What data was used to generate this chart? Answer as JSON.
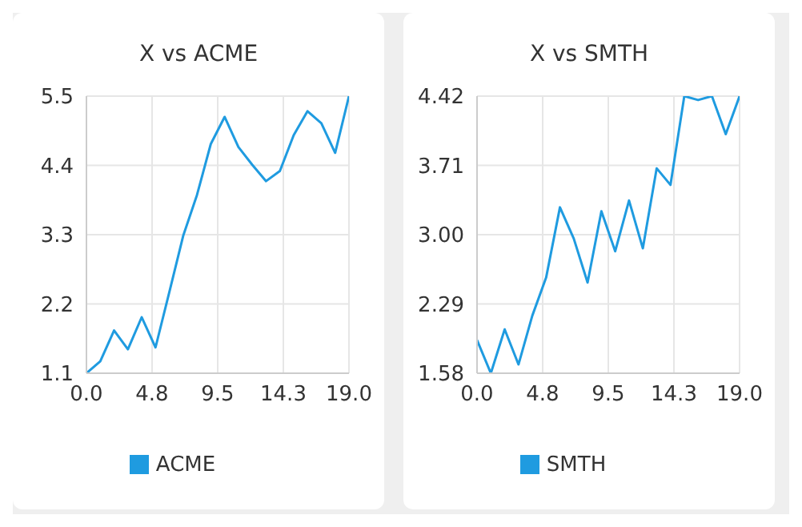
{
  "chart_data": [
    {
      "type": "line",
      "title": "X vs ACME",
      "x": [
        0,
        1,
        2,
        3,
        4,
        5,
        6,
        7,
        8,
        9,
        10,
        11,
        12,
        13,
        14,
        15,
        16,
        17,
        18,
        19
      ],
      "series": [
        {
          "name": "ACME",
          "color": "#1f9be0",
          "values": [
            1.1,
            1.29,
            1.78,
            1.48,
            1.99,
            1.51,
            2.39,
            3.28,
            3.93,
            4.74,
            5.17,
            4.69,
            4.41,
            4.15,
            4.31,
            4.88,
            5.26,
            5.07,
            4.6,
            5.5
          ]
        }
      ],
      "xlim": [
        0,
        19
      ],
      "xticks": [
        {
          "value": 0,
          "label": "0.0"
        },
        {
          "value": 4.75,
          "label": "4.8"
        },
        {
          "value": 9.5,
          "label": "9.5"
        },
        {
          "value": 14.25,
          "label": "14.3"
        },
        {
          "value": 19,
          "label": "19.0"
        }
      ],
      "ylim": [
        1.1,
        5.5
      ],
      "yticks": [
        1.1,
        2.2,
        3.3,
        4.4,
        5.5
      ],
      "grid": true,
      "legend": "bottom",
      "marker": "none"
    },
    {
      "type": "line",
      "title": "X vs SMTH",
      "x": [
        0,
        1,
        2,
        3,
        4,
        5,
        6,
        7,
        8,
        9,
        10,
        11,
        12,
        13,
        14,
        15,
        16,
        17,
        18,
        19
      ],
      "series": [
        {
          "name": "SMTH",
          "color": "#1f9be0",
          "values": [
            1.92,
            1.58,
            2.03,
            1.67,
            2.17,
            2.56,
            3.28,
            2.96,
            2.51,
            3.24,
            2.83,
            3.35,
            2.86,
            3.68,
            3.51,
            4.42,
            4.38,
            4.42,
            4.03,
            4.42
          ]
        }
      ],
      "xlim": [
        0,
        19
      ],
      "xticks": [
        {
          "value": 0,
          "label": "0.0"
        },
        {
          "value": 4.75,
          "label": "4.8"
        },
        {
          "value": 9.5,
          "label": "9.5"
        },
        {
          "value": 14.25,
          "label": "14.3"
        },
        {
          "value": 19,
          "label": "19.0"
        }
      ],
      "ylim": [
        1.58,
        4.42
      ],
      "yticks": [
        1.58,
        2.29,
        {
          "value": 3,
          "label": "3.00"
        },
        3.71,
        4.42
      ],
      "grid": true,
      "legend": "bottom",
      "marker": "none"
    }
  ]
}
